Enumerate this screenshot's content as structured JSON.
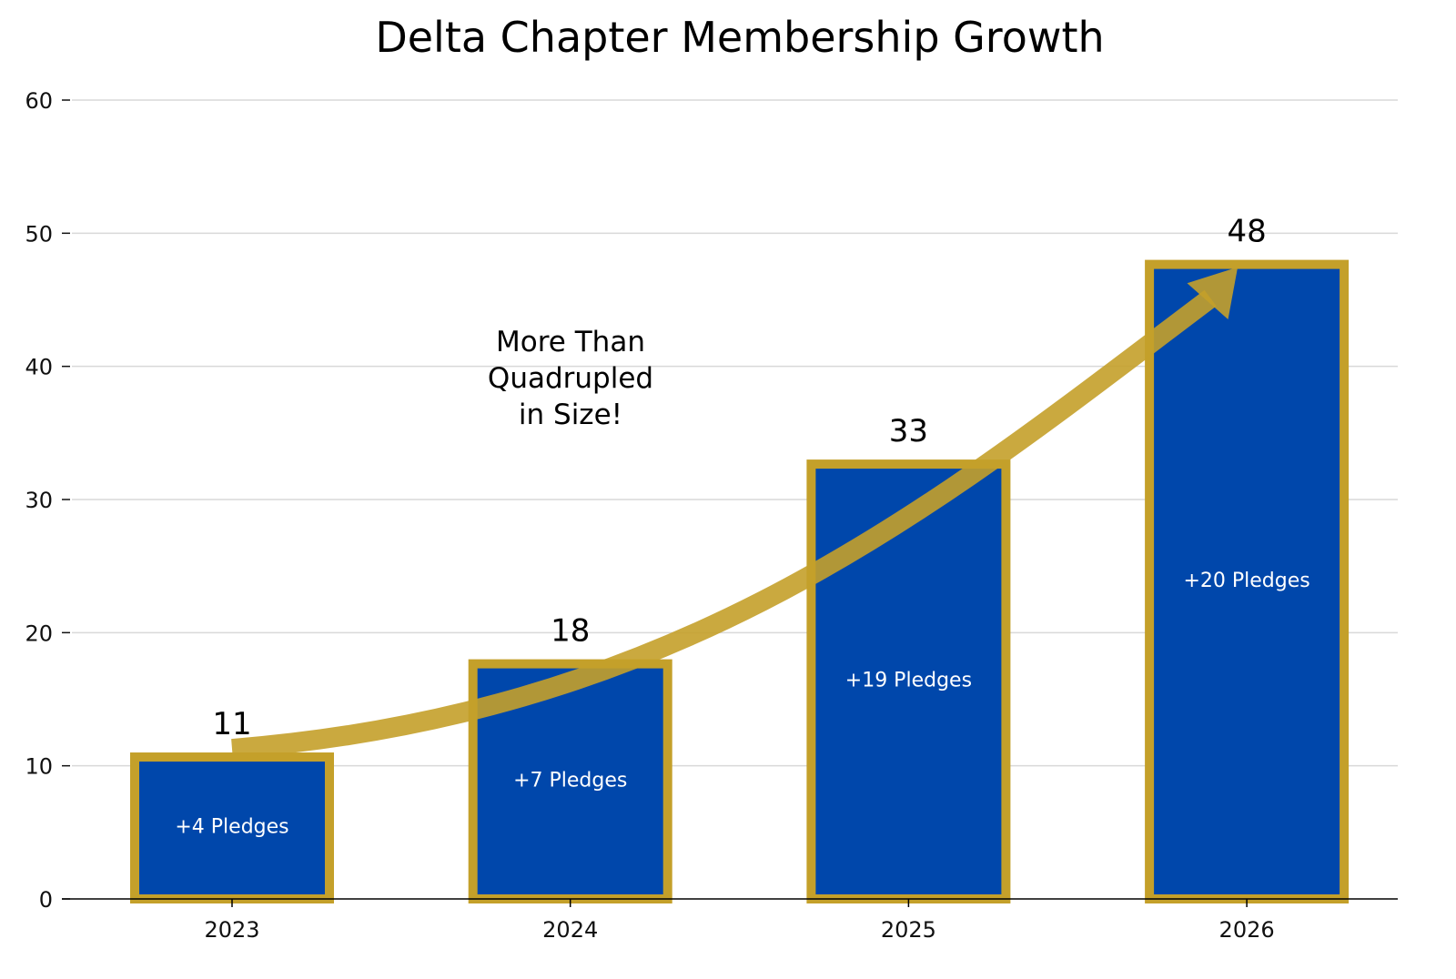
{
  "chart_data": {
    "type": "bar",
    "title": "Delta Chapter Membership Growth",
    "xlabel": "",
    "ylabel": "",
    "categories": [
      "2023",
      "2024",
      "2025",
      "2026"
    ],
    "values": [
      11,
      18,
      33,
      48
    ],
    "value_labels": [
      "11",
      "18",
      "33",
      "48"
    ],
    "inner_labels": [
      "+4 Pledges",
      "+7 Pledges",
      "+19 Pledges",
      "+20 Pledges"
    ],
    "ylim": [
      0,
      60
    ],
    "yticks": [
      0,
      10,
      20,
      30,
      40,
      50,
      60
    ],
    "ytick_labels": [
      "0",
      "10",
      "20",
      "30",
      "40",
      "50",
      "60"
    ],
    "grid": true,
    "legend": "none",
    "annotation": {
      "lines": [
        "More Than",
        "Quadrupled",
        "in Size!"
      ],
      "arrow": {
        "from": {
          "category": "2023",
          "value": 11
        },
        "to": {
          "category": "2026",
          "value": 48
        }
      }
    },
    "colors": {
      "bar_fill": "#0047AB",
      "bar_edge": "#C4A02A",
      "arrow": "#C4A02A",
      "grid": "#d9d9d9",
      "axis": "#000000"
    }
  }
}
